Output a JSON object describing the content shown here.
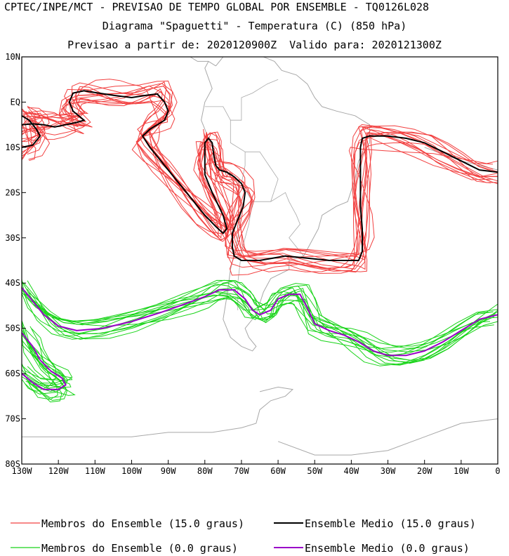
{
  "header": {
    "line1": "CPTEC/INPE/MCT - PREVISAO DE TEMPO GLOBAL POR ENSEMBLE - TQ0126L028",
    "line2": "Diagrama \"Spaguetti\" - Temperatura (C) (850 hPa)",
    "line3": "Previsao a partir de: 2020120900Z  Valido para: 2020121300Z"
  },
  "chart_data": {
    "type": "line",
    "title": "Diagrama \"Spaguetti\" - Temperatura (C) (850 hPa)",
    "xlim": [
      -130,
      0
    ],
    "ylim": [
      -80,
      10
    ],
    "x_ticks": [
      {
        "value": -130,
        "label": "130W"
      },
      {
        "value": -120,
        "label": "120W"
      },
      {
        "value": -110,
        "label": "110W"
      },
      {
        "value": -100,
        "label": "100W"
      },
      {
        "value": -90,
        "label": "90W"
      },
      {
        "value": -80,
        "label": "80W"
      },
      {
        "value": -70,
        "label": "70W"
      },
      {
        "value": -60,
        "label": "60W"
      },
      {
        "value": -50,
        "label": "50W"
      },
      {
        "value": -40,
        "label": "40W"
      },
      {
        "value": -30,
        "label": "30W"
      },
      {
        "value": -20,
        "label": "20W"
      },
      {
        "value": -10,
        "label": "10W"
      },
      {
        "value": 0,
        "label": "0"
      }
    ],
    "y_ticks": [
      {
        "value": 10,
        "label": "10N"
      },
      {
        "value": 0,
        "label": "EQ"
      },
      {
        "value": -10,
        "label": "10S"
      },
      {
        "value": -20,
        "label": "20S"
      },
      {
        "value": -30,
        "label": "30S"
      },
      {
        "value": -40,
        "label": "40S"
      },
      {
        "value": -50,
        "label": "50S"
      },
      {
        "value": -60,
        "label": "60S"
      },
      {
        "value": -70,
        "label": "70S"
      },
      {
        "value": -80,
        "label": "80S"
      }
    ],
    "series": [
      {
        "name": "Ensemble Medio (15.0 graus)",
        "color": "#000000",
        "segments": [
          [
            [
              -130,
              -5
            ],
            [
              -127,
              -4.8
            ],
            [
              -124,
              -5
            ],
            [
              -121,
              -5.5
            ],
            [
              -118,
              -5
            ],
            [
              -115,
              -4.5
            ],
            [
              -113,
              -4
            ],
            [
              -116,
              -2
            ],
            [
              -117,
              0
            ],
            [
              -116,
              2
            ],
            [
              -113,
              2.5
            ],
            [
              -109,
              2
            ],
            [
              -105,
              1.5
            ],
            [
              -100,
              1
            ],
            [
              -96,
              1.5
            ],
            [
              -93,
              1.8
            ],
            [
              -91,
              0
            ],
            [
              -90,
              -2
            ],
            [
              -91,
              -4
            ],
            [
              -93,
              -5
            ],
            [
              -95,
              -6
            ],
            [
              -97,
              -7.5
            ],
            [
              -95,
              -10
            ],
            [
              -92,
              -13
            ],
            [
              -88,
              -17
            ],
            [
              -84,
              -21
            ],
            [
              -80,
              -25
            ],
            [
              -77,
              -27.5
            ],
            [
              -75,
              -29
            ],
            [
              -74,
              -28
            ],
            [
              -75,
              -25
            ],
            [
              -78,
              -20
            ],
            [
              -80,
              -16
            ],
            [
              -80,
              -12
            ],
            [
              -80,
              -9
            ],
            [
              -79,
              -8
            ],
            [
              -78,
              -9
            ],
            [
              -77.5,
              -12
            ],
            [
              -77,
              -14
            ],
            [
              -76,
              -15
            ],
            [
              -74,
              -15.5
            ],
            [
              -72,
              -16.5
            ],
            [
              -70,
              -18
            ],
            [
              -69,
              -20
            ],
            [
              -69.5,
              -23
            ],
            [
              -71,
              -26
            ],
            [
              -72.5,
              -29
            ],
            [
              -72.5,
              -32
            ],
            [
              -72,
              -34
            ],
            [
              -70,
              -35
            ],
            [
              -65,
              -35
            ],
            [
              -58,
              -34
            ],
            [
              -52,
              -34.5
            ],
            [
              -46,
              -35
            ],
            [
              -40,
              -35
            ],
            [
              -38,
              -35
            ],
            [
              -37,
              -33
            ],
            [
              -37,
              -28
            ],
            [
              -37.5,
              -23
            ],
            [
              -37.5,
              -18
            ],
            [
              -37.5,
              -14
            ],
            [
              -37.5,
              -10
            ],
            [
              -37,
              -8
            ],
            [
              -35,
              -7.5
            ],
            [
              -30,
              -7.5
            ],
            [
              -25,
              -8
            ],
            [
              -20,
              -9
            ],
            [
              -15,
              -11
            ],
            [
              -10,
              -13
            ],
            [
              -5,
              -15
            ],
            [
              0,
              -15.5
            ]
          ],
          [
            [
              -130,
              -3
            ],
            [
              -128,
              -4
            ],
            [
              -126,
              -6
            ],
            [
              -125,
              -7.5
            ],
            [
              -127,
              -9.5
            ],
            [
              -130,
              -10
            ]
          ]
        ]
      },
      {
        "name": "Ensemble Medio (0.0 graus)",
        "color": "#9a00c8",
        "segments": [
          [
            [
              -130,
              -41
            ],
            [
              -127,
              -44
            ],
            [
              -124,
              -47
            ],
            [
              -120,
              -49.5
            ],
            [
              -115,
              -50.5
            ],
            [
              -108,
              -50
            ],
            [
              -100,
              -48.5
            ],
            [
              -92,
              -46.5
            ],
            [
              -85,
              -44.5
            ],
            [
              -80,
              -43
            ],
            [
              -76,
              -41.5
            ],
            [
              -72,
              -41.5
            ],
            [
              -69,
              -43.5
            ],
            [
              -67,
              -46
            ],
            [
              -65,
              -47
            ],
            [
              -62,
              -46
            ],
            [
              -60,
              -43.5
            ],
            [
              -57,
              -42.5
            ],
            [
              -54,
              -42.5
            ],
            [
              -52,
              -45.5
            ],
            [
              -50,
              -49
            ],
            [
              -46,
              -50.5
            ],
            [
              -42,
              -51.5
            ],
            [
              -38,
              -53
            ],
            [
              -34,
              -55
            ],
            [
              -30,
              -56
            ],
            [
              -25,
              -56
            ],
            [
              -20,
              -55
            ],
            [
              -15,
              -53
            ],
            [
              -10,
              -50.5
            ],
            [
              -5,
              -48
            ],
            [
              0,
              -47
            ]
          ],
          [
            [
              -130,
              -51
            ],
            [
              -127,
              -54
            ],
            [
              -125,
              -57
            ],
            [
              -122,
              -59.5
            ],
            [
              -119,
              -61
            ],
            [
              -118,
              -62.5
            ],
            [
              -120,
              -63.5
            ],
            [
              -124,
              -63.5
            ],
            [
              -127,
              -62
            ],
            [
              -130,
              -60
            ]
          ]
        ]
      }
    ],
    "ensemble_members": [
      {
        "name": "Membros do Ensemble (15.0 graus)",
        "color": "#f24040",
        "count": 14
      },
      {
        "name": "Membros do Ensemble (0.0 graus)",
        "color": "#19d419",
        "count": 14
      }
    ]
  },
  "legend": [
    {
      "label": "Membros do Ensemble (15.0 graus)",
      "color": "#f24040"
    },
    {
      "label": "Ensemble Medio (15.0 graus)",
      "color": "#000000"
    },
    {
      "label": "Membros do Ensemble (0.0 graus)",
      "color": "#19d419"
    },
    {
      "label": "Ensemble Medio (0.0 graus)",
      "color": "#9a00c8"
    }
  ]
}
